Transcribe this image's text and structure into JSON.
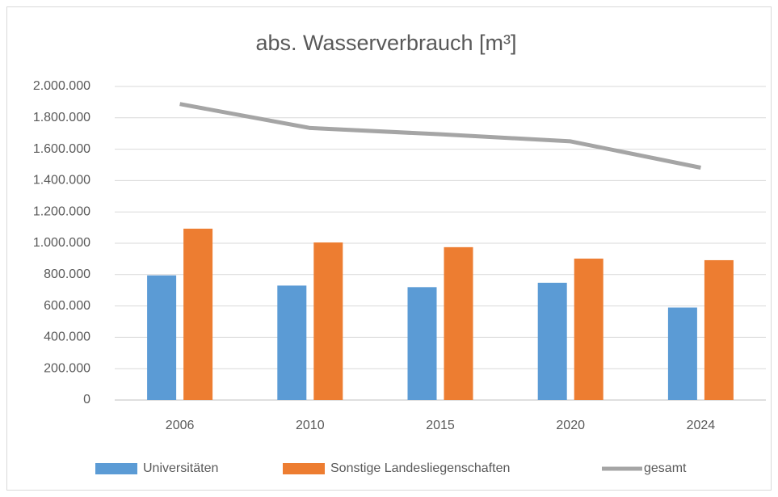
{
  "chart_data": {
    "type": "bar",
    "title": "abs. Wasserverbrauch  [m³]",
    "categories": [
      "2006",
      "2010",
      "2015",
      "2020",
      "2024"
    ],
    "series": [
      {
        "name": "Universitäten",
        "color": "#5b9bd5",
        "type": "bar",
        "values": [
          795000,
          730000,
          720000,
          748000,
          590000
        ]
      },
      {
        "name": "Sonstige Landesliegenschaften",
        "color": "#ed7d31",
        "type": "bar",
        "values": [
          1093000,
          1005000,
          975000,
          902000,
          892000
        ]
      },
      {
        "name": "gesamt",
        "color": "#a5a5a5",
        "type": "line",
        "values": [
          1888000,
          1735000,
          1695000,
          1650000,
          1482000
        ]
      }
    ],
    "ylim": [
      0,
      2000000
    ],
    "yticks": [
      0,
      {
        "value": 200000,
        "label": "200.000"
      },
      {
        "value": 400000,
        "label": "400.000"
      },
      {
        "value": 600000,
        "label": "600.000"
      },
      {
        "value": 800000,
        "label": "800.000"
      },
      {
        "value": 1000000,
        "label": "1.000.000"
      },
      {
        "value": 1200000,
        "label": "1.200.000"
      },
      {
        "value": 1400000,
        "label": "1.400.000"
      },
      {
        "value": 1600000,
        "label": "1.600.000"
      },
      {
        "value": 1800000,
        "label": "1.800.000"
      },
      {
        "value": 2000000,
        "label": "2.000.000"
      }
    ],
    "grid": true,
    "legend": "bottom"
  }
}
